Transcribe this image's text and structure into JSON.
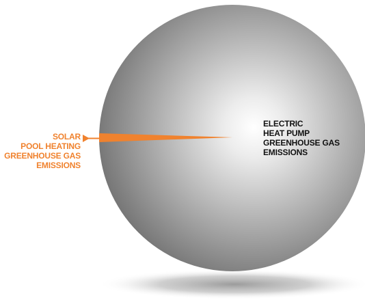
{
  "colors": {
    "solar": "#f0822e",
    "electric_text": "#111111",
    "sphere_highlight": "#ffffff",
    "sphere_shadow": "#6f6f6f"
  },
  "solar_label": {
    "lines": [
      "SOLAR",
      "POOL HEATING",
      "GREENHOUSE GAS",
      "EMISSIONS"
    ]
  },
  "electric_label": {
    "lines": [
      "ELECTRIC",
      "HEAT PUMP",
      "GREENHOUSE GAS",
      "EMISSIONS"
    ]
  }
}
